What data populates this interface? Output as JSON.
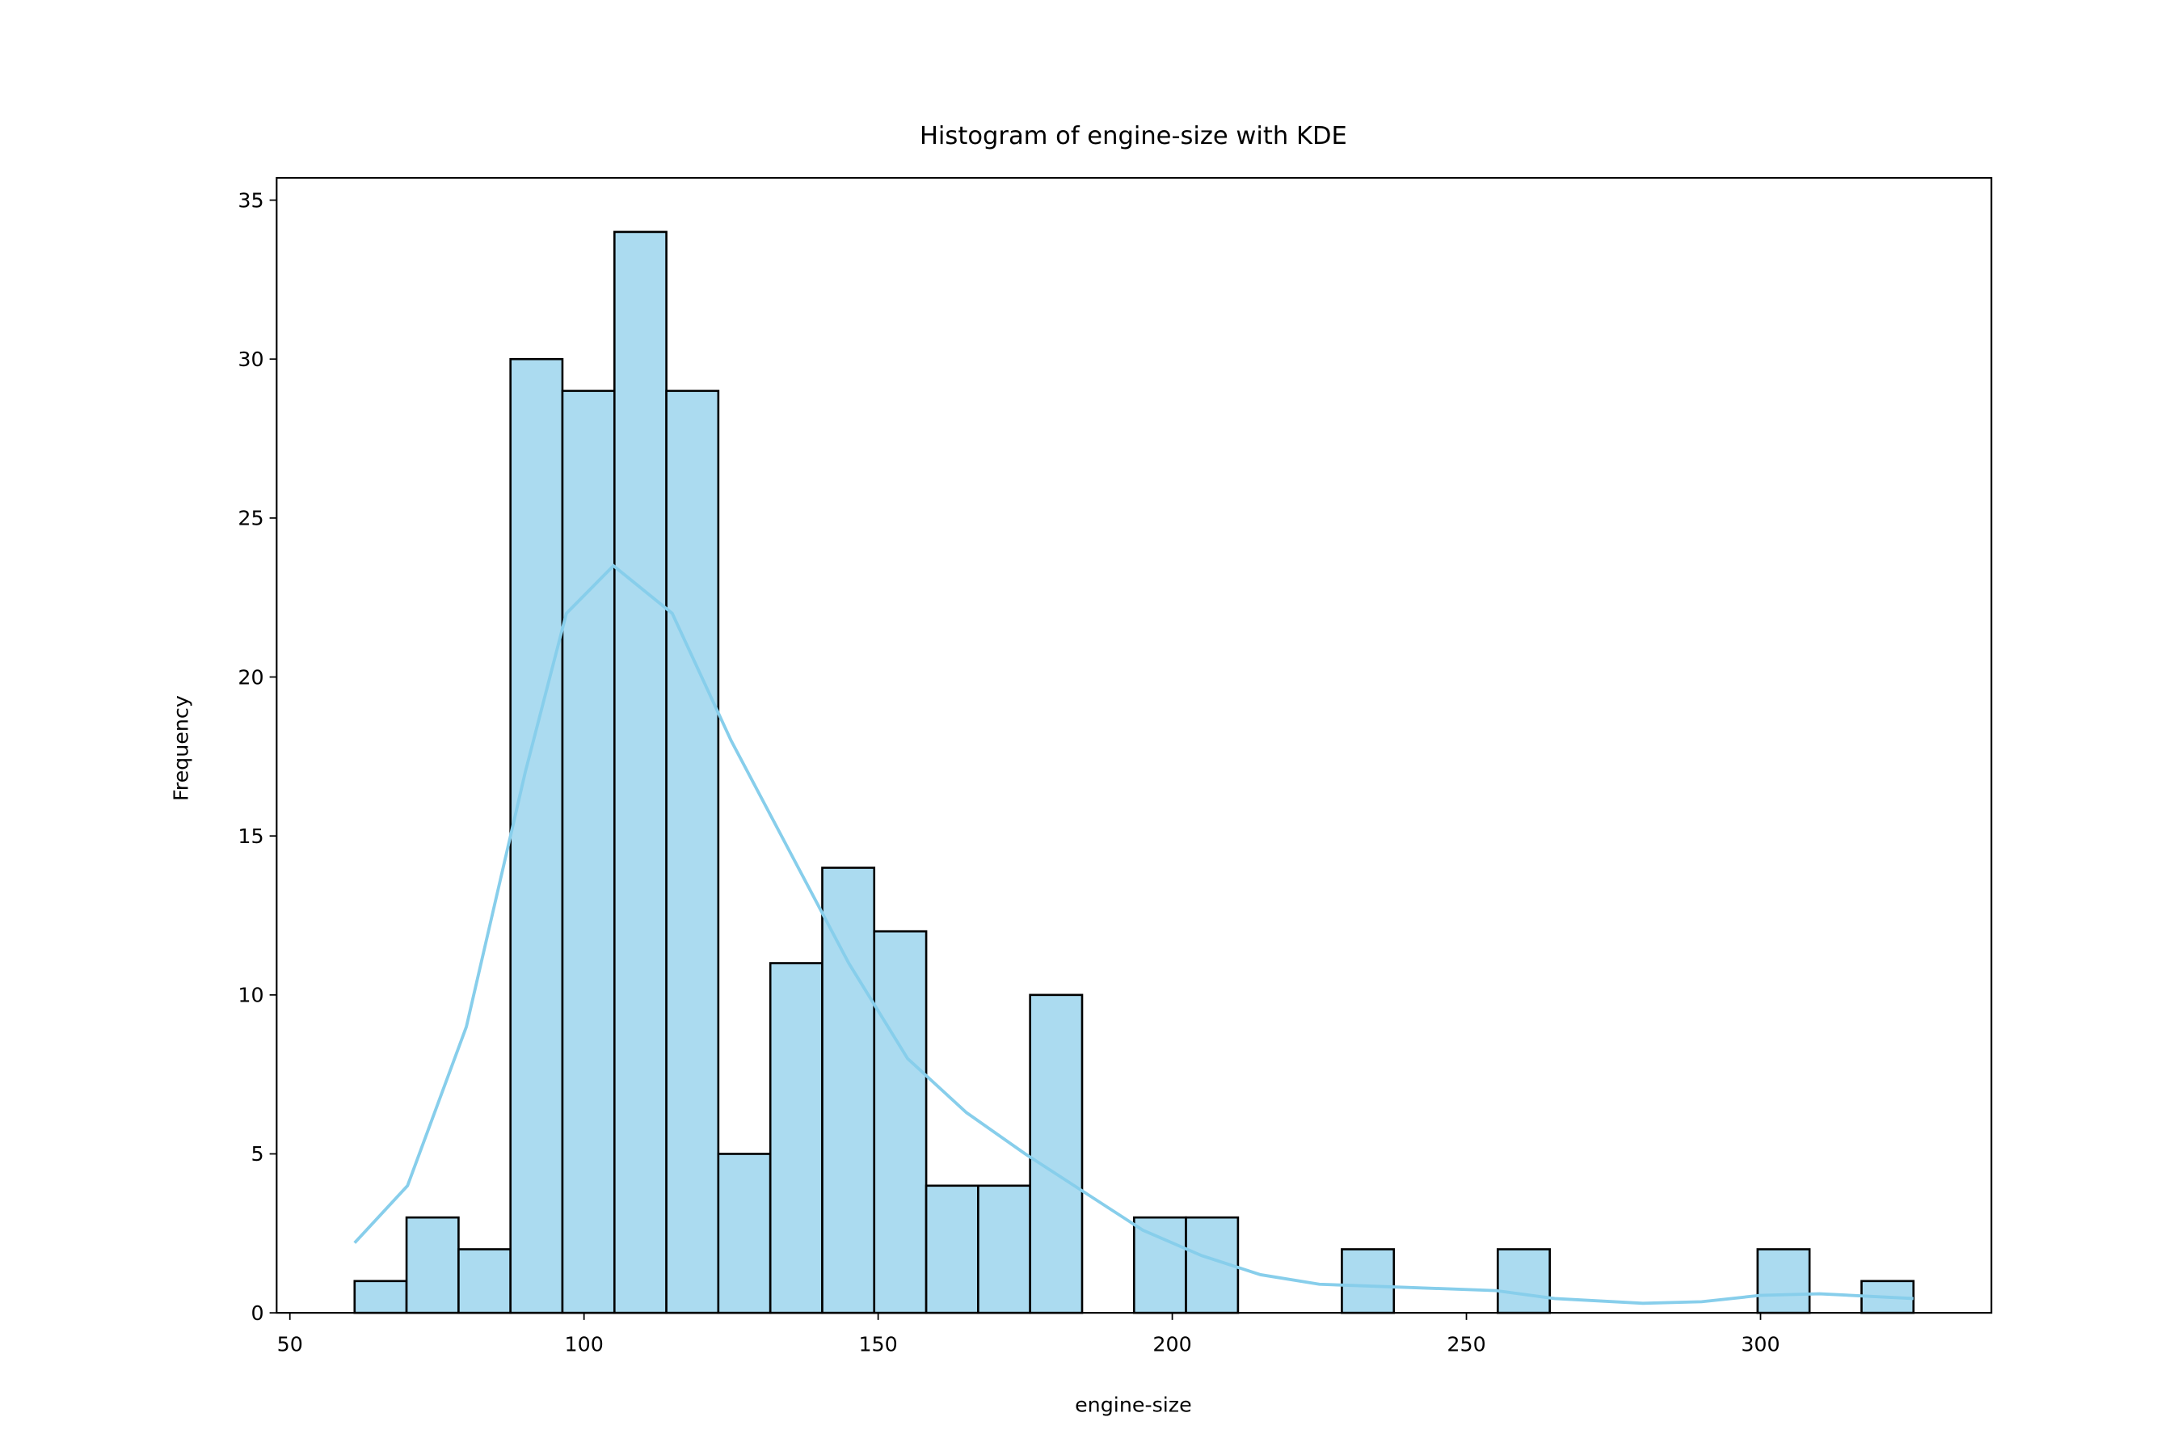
{
  "chart_data": {
    "type": "histogram",
    "title": "Histogram of engine-size with KDE",
    "xlabel": "engine-size",
    "ylabel": "Frequency",
    "bins": [
      61,
      69.83,
      78.67,
      87.5,
      96.33,
      105.17,
      114,
      122.83,
      131.67,
      140.5,
      149.33,
      158.17,
      167,
      175.83,
      184.67,
      193.5,
      202.33,
      211.17,
      220,
      228.83,
      237.67,
      246.5,
      255.33,
      264.17,
      273,
      281.83,
      290.67,
      299.5,
      308.33,
      317.17,
      326
    ],
    "values": [
      1,
      3,
      2,
      30,
      29,
      34,
      29,
      5,
      11,
      14,
      12,
      4,
      4,
      10,
      0,
      3,
      3,
      0,
      0,
      2,
      0,
      0,
      2,
      0,
      0,
      0,
      0,
      2,
      0,
      1
    ],
    "color": "#abdbf0",
    "edgecolor": "#000000",
    "kde": {
      "color": "#87ceeb",
      "x": [
        61,
        70,
        80,
        90,
        97,
        105,
        115,
        125,
        135,
        145,
        155,
        165,
        175,
        185,
        195,
        205,
        215,
        225,
        240,
        255,
        265,
        280,
        290,
        300,
        310,
        326
      ],
      "values": [
        2.2,
        4,
        9,
        17,
        22,
        23.5,
        22,
        18,
        14.5,
        11,
        8,
        6.3,
        5,
        3.8,
        2.6,
        1.8,
        1.2,
        0.9,
        0.8,
        0.7,
        0.45,
        0.3,
        0.35,
        0.55,
        0.6,
        0.45
      ]
    },
    "xlim": [
      47.75,
      339.25
    ],
    "ylim": [
      0,
      35.7
    ],
    "xticks": [
      50,
      100,
      150,
      200,
      250,
      300
    ],
    "yticks": [
      0,
      5,
      10,
      15,
      20,
      25,
      30,
      35
    ]
  }
}
